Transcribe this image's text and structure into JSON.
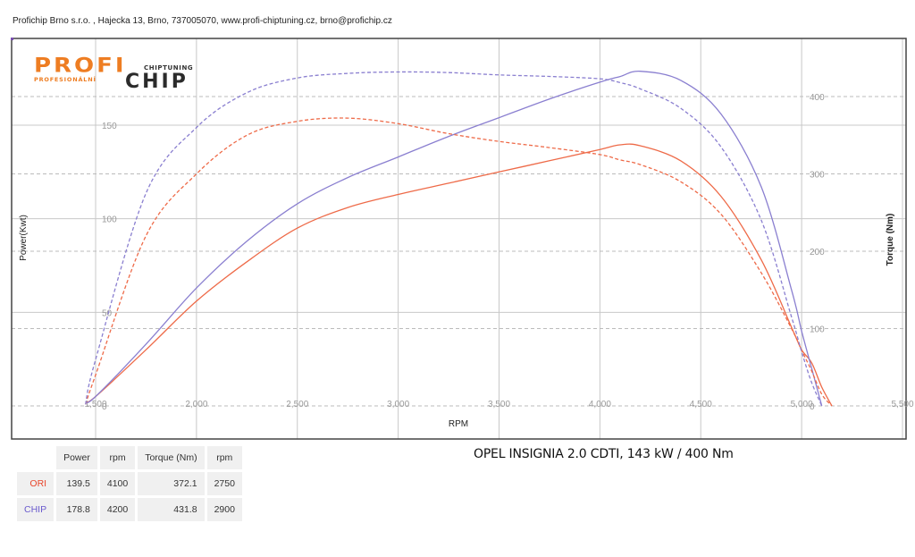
{
  "header": {
    "contact_line": "Profichip Brno s.r.o. , Hajecka 13, Brno, 737005070, www.profi-chiptuning.cz, brno@profichip.cz"
  },
  "logo": {
    "main_left": "PROFI",
    "main_right": "CHIP",
    "sub_left": "PROFESIONÁLNÍ",
    "sub_right": "CHIPTUNING",
    "colors": {
      "orange": "#ee7d22",
      "dark": "#2b2b2b"
    }
  },
  "car_title": "OPEL INSIGNIA 2.0 CDTI, 143 kW / 400 Nm",
  "summary_table": {
    "headers": [
      "",
      "Power",
      "rpm",
      "Torque (Nm)",
      "rpm"
    ],
    "rows": [
      {
        "label": "ORI",
        "power": "139.5",
        "power_rpm": "4100",
        "torque": "372.1",
        "torque_rpm": "2750"
      },
      {
        "label": "CHIP",
        "power": "178.8",
        "power_rpm": "4200",
        "torque": "431.8",
        "torque_rpm": "2900"
      }
    ]
  },
  "colors": {
    "ori": "#ee6a48",
    "chip": "#8a7fd0",
    "grid": "#bdbdbd",
    "frame": "#444444"
  },
  "chart_data": {
    "type": "line",
    "title": "OPEL INSIGNIA 2.0 CDTI, 143 kW / 400 Nm",
    "xlabel": "RPM",
    "ylabel": "Power(Kwt)",
    "y2label": "Torque (Nm)",
    "x_ticks": [
      "1,500",
      "2,000",
      "2,500",
      "3,000",
      "3,500",
      "4,000",
      "4,500",
      "5,000",
      "5,500"
    ],
    "y_ticks": [
      "0",
      "50",
      "100",
      "150"
    ],
    "y2_ticks": [
      "0",
      "100",
      "200",
      "300",
      "400"
    ],
    "xlim": [
      1500,
      5500
    ],
    "ylim": [
      0,
      196
    ],
    "y2lim": [
      0,
      450
    ],
    "grid": true,
    "legend": [
      "ORI",
      "CHIP"
    ],
    "x": [
      1450,
      1500,
      1750,
      2000,
      2250,
      2500,
      2750,
      3000,
      3250,
      3500,
      3750,
      4000,
      4100,
      4200,
      4400,
      4600,
      4800,
      4950,
      5000,
      5050,
      5100,
      5150
    ],
    "series": [
      {
        "name": "ORI Power (kW)",
        "axis": "power",
        "style": "solid",
        "values": [
          2,
          5,
          30,
          56,
          77,
          95,
          106,
          113,
          119,
          125,
          131,
          137,
          139.5,
          139,
          131,
          112,
          78,
          42,
          30,
          23,
          10,
          0
        ]
      },
      {
        "name": "CHIP Power (kW)",
        "axis": "power",
        "style": "solid",
        "values": [
          2,
          5,
          33,
          63,
          88,
          108,
          122,
          133,
          144,
          154,
          164,
          173,
          176,
          178.8,
          174,
          156,
          117,
          62,
          40,
          20,
          0,
          null
        ]
      },
      {
        "name": "ORI Torque (Nm)",
        "axis": "torque",
        "style": "dashed",
        "values": [
          2,
          40,
          220,
          300,
          350,
          368,
          372.1,
          365,
          352,
          342,
          334,
          325,
          318,
          312,
          290,
          248,
          172,
          100,
          72,
          45,
          15,
          0
        ]
      },
      {
        "name": "CHIP Torque (Nm)",
        "axis": "torque",
        "style": "dashed",
        "values": [
          2,
          60,
          275,
          360,
          405,
          424,
          430,
          431.8,
          431,
          428,
          426,
          423,
          418,
          410,
          385,
          335,
          240,
          115,
          70,
          30,
          0,
          null
        ]
      }
    ]
  }
}
